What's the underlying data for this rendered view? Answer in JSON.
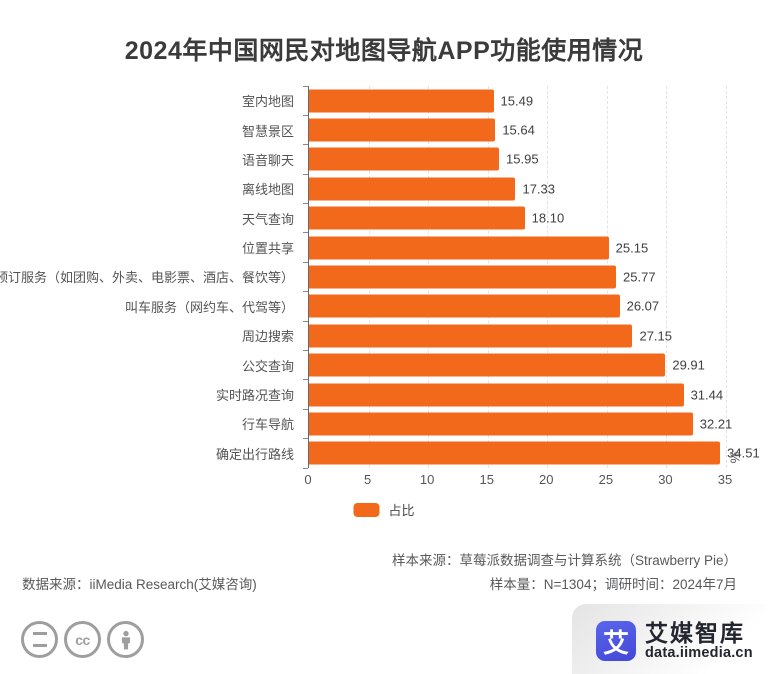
{
  "title": "2024年中国网民对地图导航APP功能使用情况",
  "chart_data": {
    "type": "bar",
    "orientation": "horizontal",
    "title": "2024年中国网民对地图导航APP功能使用情况",
    "categories": [
      "室内地图",
      "智慧景区",
      "语音聊天",
      "离线地图",
      "天气查询",
      "位置共享",
      "预订服务（如团购、外卖、电影票、酒店、餐饮等）",
      "叫车服务（网约车、代驾等）",
      "周边搜索",
      "公交查询",
      "实时路况查询",
      "行车导航",
      "确定出行路线"
    ],
    "values": [
      15.49,
      15.64,
      15.95,
      17.33,
      18.1,
      25.15,
      25.77,
      26.07,
      27.15,
      29.91,
      31.44,
      32.21,
      34.51
    ],
    "value_labels": [
      "15.49",
      "15.64",
      "15.95",
      "17.33",
      "18.10",
      "25.15",
      "25.77",
      "26.07",
      "27.15",
      "29.91",
      "31.44",
      "32.21",
      "34.51"
    ],
    "series_name": "占比",
    "unit": "%",
    "xlim": [
      0,
      35
    ],
    "xticks": [
      0,
      5,
      10,
      15,
      20,
      25,
      30,
      35
    ],
    "xtick_labels": [
      "0",
      "5",
      "10",
      "15",
      "20",
      "25",
      "30",
      "35"
    ],
    "bar_color": "#f2691c",
    "grid": "vertical-dashed",
    "legend_position": "bottom-center"
  },
  "legend": {
    "label": "占比",
    "swatch_color": "#f2691c"
  },
  "axis": {
    "unit_label": "%"
  },
  "footer": {
    "data_source": "数据来源：iiMedia Research(艾媒咨询)",
    "sample_source": "样本来源：草莓派数据调查与计算系统（Strawberry Pie）",
    "sample_info": "样本量：N=1304；调研时间：2024年7月"
  },
  "license": {
    "cc_text": "cc",
    "icons": [
      "equals-icon",
      "cc-icon",
      "attribution-person-icon"
    ]
  },
  "brand": {
    "logo_char": "艾",
    "name": "艾媒智库",
    "site": "data.iimedia.cn",
    "logo_color": "#4a55e0"
  }
}
